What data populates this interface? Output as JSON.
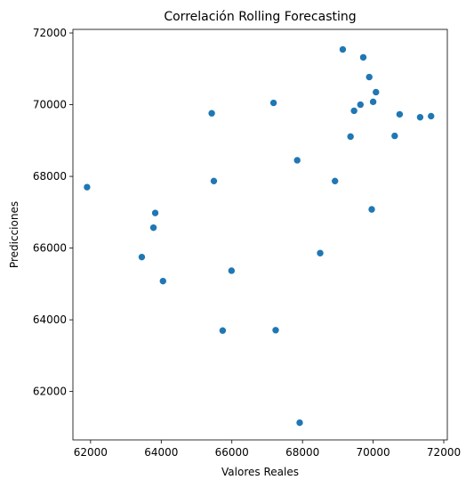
{
  "chart_data": {
    "type": "scatter",
    "title": "Correlación Rolling Forecasting",
    "xlabel": "Valores Reales",
    "ylabel": "Predicciones",
    "xlim": [
      61500,
      72100
    ],
    "ylim": [
      60650,
      72100
    ],
    "xticks": [
      62000,
      64000,
      66000,
      68000,
      70000,
      72000
    ],
    "yticks": [
      62000,
      64000,
      66000,
      68000,
      70000,
      72000
    ],
    "grid": false,
    "color": "#1f77b4",
    "points": [
      {
        "x": 61900,
        "y": 67700
      },
      {
        "x": 63450,
        "y": 65750
      },
      {
        "x": 63780,
        "y": 66570
      },
      {
        "x": 63830,
        "y": 66980
      },
      {
        "x": 64050,
        "y": 65080
      },
      {
        "x": 65430,
        "y": 69760
      },
      {
        "x": 65490,
        "y": 67870
      },
      {
        "x": 65740,
        "y": 63700
      },
      {
        "x": 65990,
        "y": 65370
      },
      {
        "x": 67180,
        "y": 70050
      },
      {
        "x": 67240,
        "y": 63710
      },
      {
        "x": 67850,
        "y": 68450
      },
      {
        "x": 67920,
        "y": 61130
      },
      {
        "x": 68500,
        "y": 65860
      },
      {
        "x": 68920,
        "y": 67870
      },
      {
        "x": 69140,
        "y": 71540
      },
      {
        "x": 69360,
        "y": 69110
      },
      {
        "x": 69460,
        "y": 69830
      },
      {
        "x": 69640,
        "y": 70000
      },
      {
        "x": 69720,
        "y": 71320
      },
      {
        "x": 69890,
        "y": 70770
      },
      {
        "x": 69960,
        "y": 67080
      },
      {
        "x": 70000,
        "y": 70080
      },
      {
        "x": 70080,
        "y": 70350
      },
      {
        "x": 70610,
        "y": 69130
      },
      {
        "x": 70750,
        "y": 69730
      },
      {
        "x": 71330,
        "y": 69650
      },
      {
        "x": 71640,
        "y": 69680
      }
    ]
  }
}
